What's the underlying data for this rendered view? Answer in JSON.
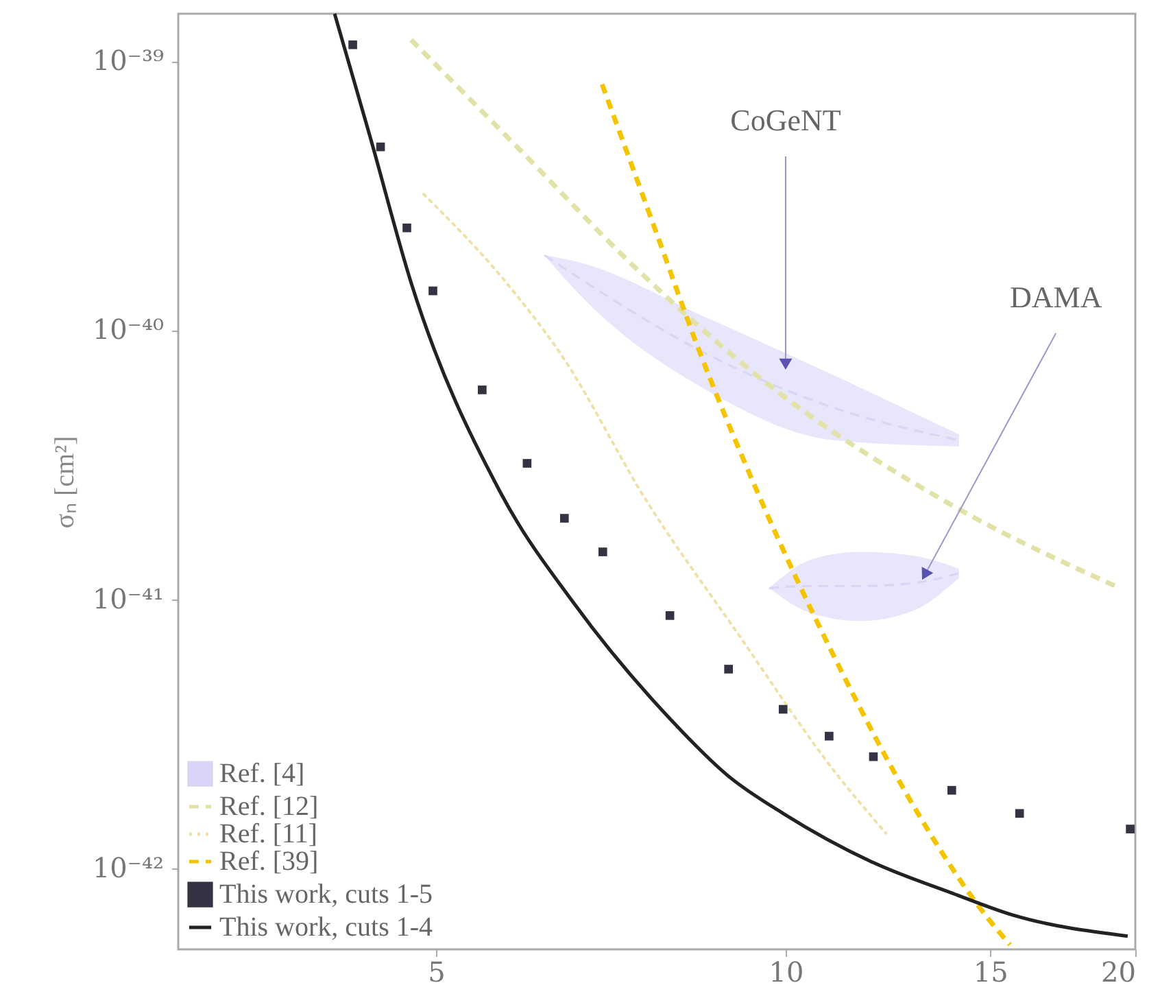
{
  "chart_data": {
    "type": "line",
    "ylabel": "σₙ [cm²]",
    "xlim": [
      3,
      20
    ],
    "xticks": [
      5,
      10,
      15,
      20
    ],
    "ylim": [
      5e-43,
      1.5e-39
    ],
    "yticks": [
      {
        "value": 1e-39,
        "label": "10⁻³⁹"
      },
      {
        "value": 1e-40,
        "label": "10⁻⁴⁰"
      },
      {
        "value": 1e-41,
        "label": "10⁻⁴¹"
      },
      {
        "value": 1e-42,
        "label": "10⁻⁴²"
      }
    ],
    "log": "xy",
    "legend": "bottom left",
    "annotations": [
      {
        "text": "CoGeNT",
        "x": 10,
        "y": 7.6e-41
      },
      {
        "text": "DAMA",
        "x": 13.2,
        "y": 1.25e-41
      }
    ],
    "series": [
      {
        "name": "Ref. [4]",
        "type": "line",
        "color": "#d9d5f6",
        "line_style": "dashed",
        "x": [
          6.2,
          6.6,
          8.6,
          11.0,
          14.1
        ],
        "values": [
          1.9e-40,
          1.59e-40,
          8.06e-41,
          5.15e-41,
          3.9e-41
        ],
        "lower": [
          1.9e-40,
          1.4e-40,
          5.9e-41,
          3.9e-41,
          3.7e-41
        ],
        "upper": [
          1.9e-40,
          1.8e-40,
          1.1e-40,
          6.8e-41,
          4.1e-41
        ]
      },
      {
        "type": "line",
        "color": "#d9d5f6",
        "line_style": "dashed",
        "x": [
          9.68,
          10.5,
          11.6,
          12.9,
          14.1
        ],
        "values": [
          1.1e-41,
          1.12e-41,
          1.12e-41,
          1.15e-41,
          1.25e-41
        ],
        "lower": [
          1.1e-41,
          8.9e-42,
          8.3e-42,
          9.1e-42,
          1.2e-41
        ],
        "upper": [
          1.1e-41,
          1.4e-41,
          1.5e-41,
          1.45e-41,
          1.3e-41
        ]
      },
      {
        "name": "Ref. [12]",
        "type": "line",
        "color": "#e2e2a8",
        "line_style": "dashed",
        "x": [
          4.76,
          5.9,
          7.33,
          9.61,
          14.0,
          19.4
        ],
        "values": [
          1.2e-39,
          4.7e-40,
          1.8e-40,
          6.4e-41,
          2.2e-41,
          1.1e-41
        ]
      },
      {
        "name": "Ref. [11]",
        "type": "line",
        "color": "#efe2a8",
        "line_style": "dotted",
        "x": [
          4.88,
          5.75,
          6.41,
          7.6,
          9.03,
          11.1,
          12.2
        ],
        "values": [
          3.2e-40,
          1.5e-40,
          8.1e-41,
          2.3e-41,
          7.8e-42,
          2.2e-42,
          1.35e-42
        ]
      },
      {
        "name": "Ref. [39]",
        "type": "line",
        "color": "#f5c400",
        "line_style": "dashed",
        "x": [
          6.95,
          7.74,
          8.39,
          9.42,
          11.1,
          12.7,
          14.9,
          15.6
        ],
        "values": [
          8.2e-40,
          2.3e-40,
          8.8e-41,
          2.6e-41,
          5.7e-42,
          1.9e-42,
          6.6e-43,
          5.2e-43
        ]
      },
      {
        "name": "This work, cuts 1-5",
        "type": "scatter",
        "color": "#333344",
        "marker": "square",
        "x": [
          4.24,
          4.48,
          4.72,
          4.97,
          5.48,
          5.99,
          6.45,
          6.96,
          7.95,
          8.93,
          9.95,
          10.9,
          11.9,
          13.9,
          15.9,
          19.8
        ],
        "values": [
          1.15e-39,
          4.8e-40,
          2.4e-40,
          1.4e-40,
          6e-41,
          3.2e-41,
          2e-41,
          1.5e-41,
          8.7e-42,
          5.5e-42,
          3.9e-42,
          3.1e-42,
          2.6e-42,
          1.95e-42,
          1.6e-42,
          1.4e-42
        ]
      },
      {
        "name": "This work, cuts 1-4",
        "type": "line",
        "color": "#222222",
        "line_style": "solid",
        "x": [
          4.09,
          4.39,
          4.76,
          5.68,
          6.58,
          7.95,
          8.93,
          9.95,
          11.9,
          13.9,
          15.7,
          19.7
        ],
        "values": [
          1.5e-39,
          5.2e-40,
          1.5e-40,
          2.5e-41,
          9.6e-42,
          3.6e-42,
          2.2e-42,
          1.6e-42,
          1.05e-42,
          8.1e-43,
          6.7e-43,
          5.6e-43
        ]
      }
    ]
  }
}
